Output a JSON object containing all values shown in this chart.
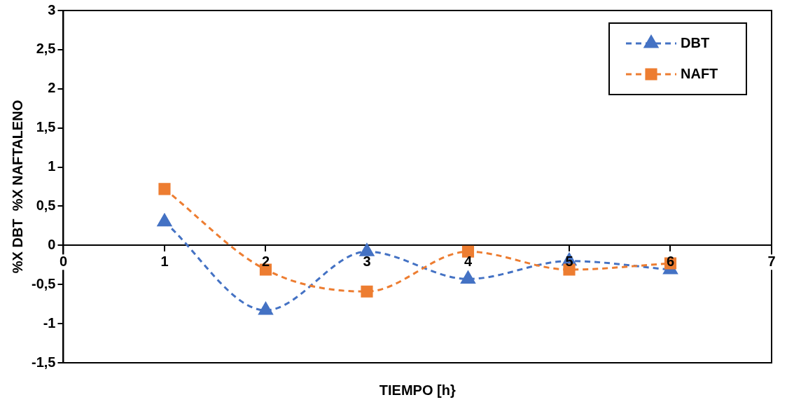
{
  "chart_data": {
    "type": "line",
    "xlabel": "TIEMPO [h}",
    "ylabel": "%X DBT  %X NAFTALENO",
    "x": [
      1,
      2,
      3,
      4,
      5,
      6
    ],
    "series": [
      {
        "name": "DBT",
        "color": "#4472c4",
        "marker": "triangle",
        "values": [
          0.3,
          -0.83,
          -0.08,
          -0.43,
          -0.2,
          -0.31
        ]
      },
      {
        "name": "NAFT",
        "color": "#ed7d31",
        "marker": "square",
        "values": [
          0.72,
          -0.31,
          -0.59,
          -0.08,
          -0.31,
          -0.23
        ]
      }
    ],
    "xlim": [
      0,
      7
    ],
    "xticks": [
      0,
      1,
      2,
      3,
      4,
      5,
      6,
      7
    ],
    "ylim": [
      -1.5,
      3
    ],
    "yticks": [
      {
        "value": -1.5,
        "label": "-1,5"
      },
      -1,
      {
        "value": -0.5,
        "label": "-0,5"
      },
      0,
      {
        "value": 0.5,
        "label": "0,5"
      },
      1,
      {
        "value": 1.5,
        "label": "1,5"
      },
      2,
      {
        "value": 2.5,
        "label": "2,5"
      },
      3
    ],
    "grid": false,
    "legend": "top right",
    "line_style": "dashed"
  }
}
